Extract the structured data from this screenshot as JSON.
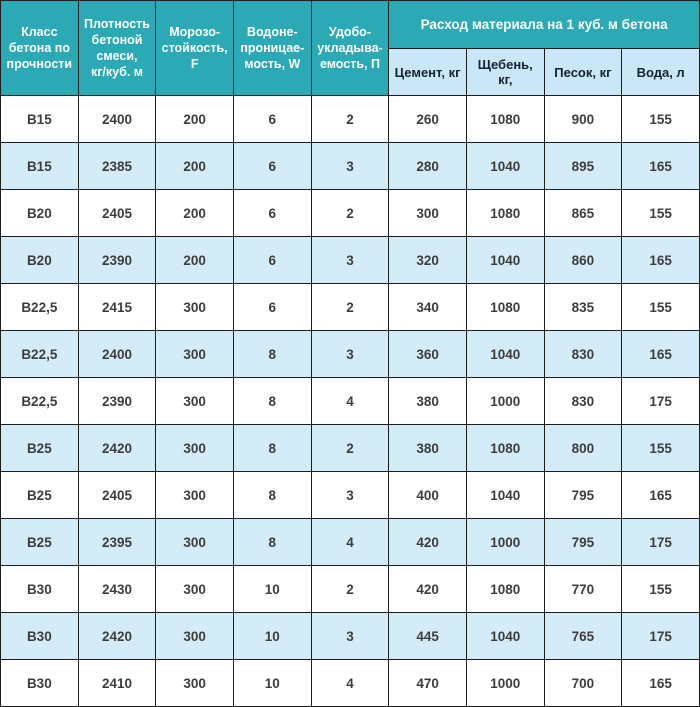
{
  "colors": {
    "header_teal": "#2BA9B4",
    "subheader_blue": "#C9E7F6",
    "row_alt_blue": "#D4ECF8",
    "row_white": "#FFFFFF",
    "border": "#1D1D1D",
    "body_text": "#3D3D3D",
    "header_text": "#FFFFFF",
    "subheader_text": "#152330"
  },
  "table": {
    "header": {
      "col_class": "Класс\nбетона по\nпрочности",
      "col_density": "Плотность\nбетоной\nсмеси,\nкг/куб. м",
      "col_frost": "Морозо-\nстойкость,\nF",
      "col_waterproof": "Водоне-\nпроницае-\nмость, W",
      "col_workability": "Удобо-\nукладыва-\nемость, П",
      "group_consumption": "Расход материала на 1 куб. м бетона",
      "col_cement": "Цемент, кг",
      "col_gravel": "Щебень, кг,",
      "col_sand": "Песок, кг",
      "col_water": "Вода, л"
    },
    "rows": [
      [
        "В15",
        "2400",
        "200",
        "6",
        "2",
        "260",
        "1080",
        "900",
        "155"
      ],
      [
        "В15",
        "2385",
        "200",
        "6",
        "3",
        "280",
        "1040",
        "895",
        "165"
      ],
      [
        "В20",
        "2405",
        "200",
        "6",
        "2",
        "300",
        "1080",
        "865",
        "155"
      ],
      [
        "В20",
        "2390",
        "200",
        "6",
        "3",
        "320",
        "1040",
        "860",
        "165"
      ],
      [
        "В22,5",
        "2415",
        "300",
        "6",
        "2",
        "340",
        "1080",
        "835",
        "155"
      ],
      [
        "В22,5",
        "2400",
        "300",
        "8",
        "3",
        "360",
        "1040",
        "830",
        "165"
      ],
      [
        "В22,5",
        "2390",
        "300",
        "8",
        "4",
        "380",
        "1000",
        "830",
        "175"
      ],
      [
        "В25",
        "2420",
        "300",
        "8",
        "2",
        "380",
        "1080",
        "800",
        "155"
      ],
      [
        "В25",
        "2405",
        "300",
        "8",
        "3",
        "400",
        "1040",
        "795",
        "165"
      ],
      [
        "В25",
        "2395",
        "300",
        "8",
        "4",
        "420",
        "1000",
        "795",
        "175"
      ],
      [
        "В30",
        "2430",
        "300",
        "10",
        "2",
        "420",
        "1080",
        "770",
        "155"
      ],
      [
        "В30",
        "2420",
        "300",
        "10",
        "3",
        "445",
        "1040",
        "765",
        "175"
      ],
      [
        "В30",
        "2410",
        "300",
        "10",
        "4",
        "470",
        "1000",
        "700",
        "165"
      ]
    ]
  },
  "chart_data": {
    "type": "table",
    "title": "Расход материала на 1 куб. м бетона",
    "columns": [
      "Класс бетона по прочности",
      "Плотность бетоной смеси, кг/куб. м",
      "Морозостойкость, F",
      "Водонепроницаемость, W",
      "Удобоукладываемость, П",
      "Цемент, кг",
      "Щебень, кг",
      "Песок, кг",
      "Вода, л"
    ],
    "rows": [
      [
        "В15",
        2400,
        200,
        6,
        2,
        260,
        1080,
        900,
        155
      ],
      [
        "В15",
        2385,
        200,
        6,
        3,
        280,
        1040,
        895,
        165
      ],
      [
        "В20",
        2405,
        200,
        6,
        2,
        300,
        1080,
        865,
        155
      ],
      [
        "В20",
        2390,
        200,
        6,
        3,
        320,
        1040,
        860,
        165
      ],
      [
        "В22,5",
        2415,
        300,
        6,
        2,
        340,
        1080,
        835,
        155
      ],
      [
        "В22,5",
        2400,
        300,
        8,
        3,
        360,
        1040,
        830,
        165
      ],
      [
        "В22,5",
        2390,
        300,
        8,
        4,
        380,
        1000,
        830,
        175
      ],
      [
        "В25",
        2420,
        300,
        8,
        2,
        380,
        1080,
        800,
        155
      ],
      [
        "В25",
        2405,
        300,
        8,
        3,
        400,
        1040,
        795,
        165
      ],
      [
        "В25",
        2395,
        300,
        8,
        4,
        420,
        1000,
        795,
        175
      ],
      [
        "В30",
        2430,
        300,
        10,
        2,
        420,
        1080,
        770,
        155
      ],
      [
        "В30",
        2420,
        300,
        10,
        3,
        445,
        1040,
        765,
        175
      ],
      [
        "В30",
        2410,
        300,
        10,
        4,
        470,
        1000,
        700,
        165
      ]
    ]
  }
}
